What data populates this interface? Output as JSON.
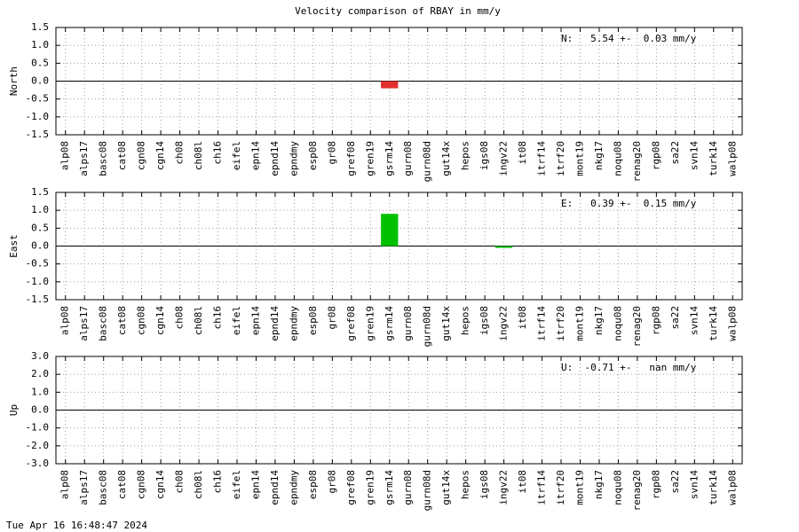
{
  "title": "Velocity comparison of RBAY in mm/y",
  "footer": "Tue Apr 16 16:48:47 2024",
  "chart_data": [
    {
      "type": "bar",
      "ylabel": "North",
      "annotation": "N:   5.54 +-  0.03 mm/y",
      "color": "#e03030",
      "grid": true,
      "categories": [
        "alp08",
        "alps17",
        "basc08",
        "cat08",
        "cgn08",
        "cgn14",
        "ch08",
        "ch08l",
        "ch16",
        "eifel",
        "epn14",
        "epnd14",
        "epndmy",
        "esp08",
        "gr08",
        "gref08",
        "gren19",
        "gsrm14",
        "gurn08",
        "gurn08d",
        "gut14x",
        "hepos",
        "igs08",
        "ingv22",
        "it08",
        "itrf14",
        "itrf20",
        "mont19",
        "nkg17",
        "noqu08",
        "renag20",
        "rgp08",
        "sa22",
        "svn14",
        "turk14",
        "walp08"
      ],
      "values": [
        null,
        null,
        null,
        null,
        null,
        null,
        null,
        null,
        null,
        null,
        null,
        null,
        null,
        null,
        null,
        null,
        null,
        -0.2,
        null,
        null,
        null,
        null,
        null,
        null,
        null,
        null,
        null,
        null,
        null,
        null,
        null,
        null,
        null,
        null,
        null,
        null
      ],
      "ylim": [
        -1.5,
        1.5
      ],
      "yticks": [
        -1.5,
        {
          "value": -1,
          "label": "-1.0"
        },
        -0.5,
        {
          "value": 0,
          "label": "0.0"
        },
        0.5,
        {
          "value": 1,
          "label": "1.0"
        },
        1.5
      ]
    },
    {
      "type": "bar",
      "ylabel": "East",
      "annotation": "E:   0.39 +-  0.15 mm/y",
      "color": "#00c000",
      "grid": true,
      "categories": [
        "alp08",
        "alps17",
        "basc08",
        "cat08",
        "cgn08",
        "cgn14",
        "ch08",
        "ch08l",
        "ch16",
        "eifel",
        "epn14",
        "epnd14",
        "epndmy",
        "esp08",
        "gr08",
        "gref08",
        "gren19",
        "gsrm14",
        "gurn08",
        "gurn08d",
        "gut14x",
        "hepos",
        "igs08",
        "ingv22",
        "it08",
        "itrf14",
        "itrf20",
        "mont19",
        "nkg17",
        "noqu08",
        "renag20",
        "rgp08",
        "sa22",
        "svn14",
        "turk14",
        "walp08"
      ],
      "values": [
        null,
        null,
        null,
        null,
        null,
        null,
        null,
        null,
        null,
        null,
        null,
        null,
        null,
        null,
        null,
        null,
        null,
        0.9,
        null,
        null,
        null,
        null,
        null,
        -0.05,
        null,
        null,
        null,
        null,
        null,
        null,
        null,
        null,
        null,
        null,
        null,
        null
      ],
      "ylim": [
        -1.5,
        1.5
      ],
      "yticks": [
        -1.5,
        {
          "value": -1,
          "label": "-1.0"
        },
        -0.5,
        {
          "value": 0,
          "label": "0.0"
        },
        0.5,
        {
          "value": 1,
          "label": "1.0"
        },
        1.5
      ]
    },
    {
      "type": "bar",
      "ylabel": "Up",
      "annotation": "U:  -0.71 +-   nan mm/y",
      "color": "#0000c0",
      "grid": true,
      "categories": [
        "alp08",
        "alps17",
        "basc08",
        "cat08",
        "cgn08",
        "cgn14",
        "ch08",
        "ch08l",
        "ch16",
        "eifel",
        "epn14",
        "epnd14",
        "epndmy",
        "esp08",
        "gr08",
        "gref08",
        "gren19",
        "gsrm14",
        "gurn08",
        "gurn08d",
        "gut14x",
        "hepos",
        "igs08",
        "ingv22",
        "it08",
        "itrf14",
        "itrf20",
        "mont19",
        "nkg17",
        "noqu08",
        "renag20",
        "rgp08",
        "sa22",
        "svn14",
        "turk14",
        "walp08"
      ],
      "values": [
        null,
        null,
        null,
        null,
        null,
        null,
        null,
        null,
        null,
        null,
        null,
        null,
        null,
        null,
        null,
        null,
        null,
        null,
        null,
        null,
        null,
        null,
        null,
        null,
        null,
        null,
        null,
        null,
        null,
        null,
        null,
        null,
        null,
        null,
        null,
        null
      ],
      "ylim": [
        -3,
        3
      ],
      "yticks": [
        {
          "value": -3,
          "label": "-3.0"
        },
        {
          "value": -2,
          "label": "-2.0"
        },
        {
          "value": -1,
          "label": "-1.0"
        },
        {
          "value": 0,
          "label": "0.0"
        },
        {
          "value": 1,
          "label": "1.0"
        },
        {
          "value": 2,
          "label": "2.0"
        },
        {
          "value": 3,
          "label": "3.0"
        }
      ]
    }
  ]
}
